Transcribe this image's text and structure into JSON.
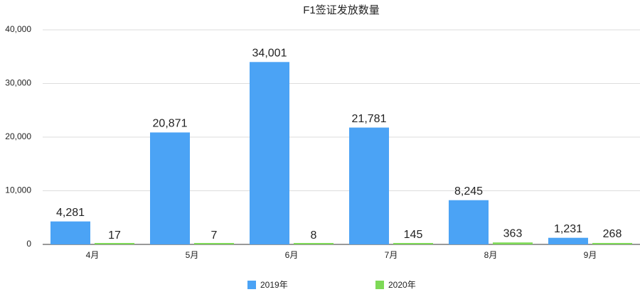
{
  "chart_data": {
    "type": "bar",
    "title": "F1签证发放数量",
    "categories": [
      "4月",
      "5月",
      "6月",
      "7月",
      "8月",
      "9月"
    ],
    "series": [
      {
        "name": "2019年",
        "color": "#4ba3f5",
        "values": [
          4281,
          20871,
          34001,
          21781,
          8245,
          1231
        ],
        "value_labels": [
          "4,281",
          "20,871",
          "34,001",
          "21,781",
          "8,245",
          "1,231"
        ]
      },
      {
        "name": "2020年",
        "color": "#7ed957",
        "values": [
          17,
          7,
          8,
          145,
          363,
          268
        ],
        "value_labels": [
          "17",
          "7",
          "8",
          "145",
          "363",
          "268"
        ]
      }
    ],
    "ylim": [
      0,
      40000
    ],
    "yticks": [
      0,
      {
        "value": 10000,
        "label": "10,000"
      },
      {
        "value": 20000,
        "label": "20,000"
      },
      {
        "value": 30000,
        "label": "30,000"
      },
      {
        "value": 40000,
        "label": "40,000"
      }
    ],
    "grid": true,
    "legend": "bottom"
  }
}
